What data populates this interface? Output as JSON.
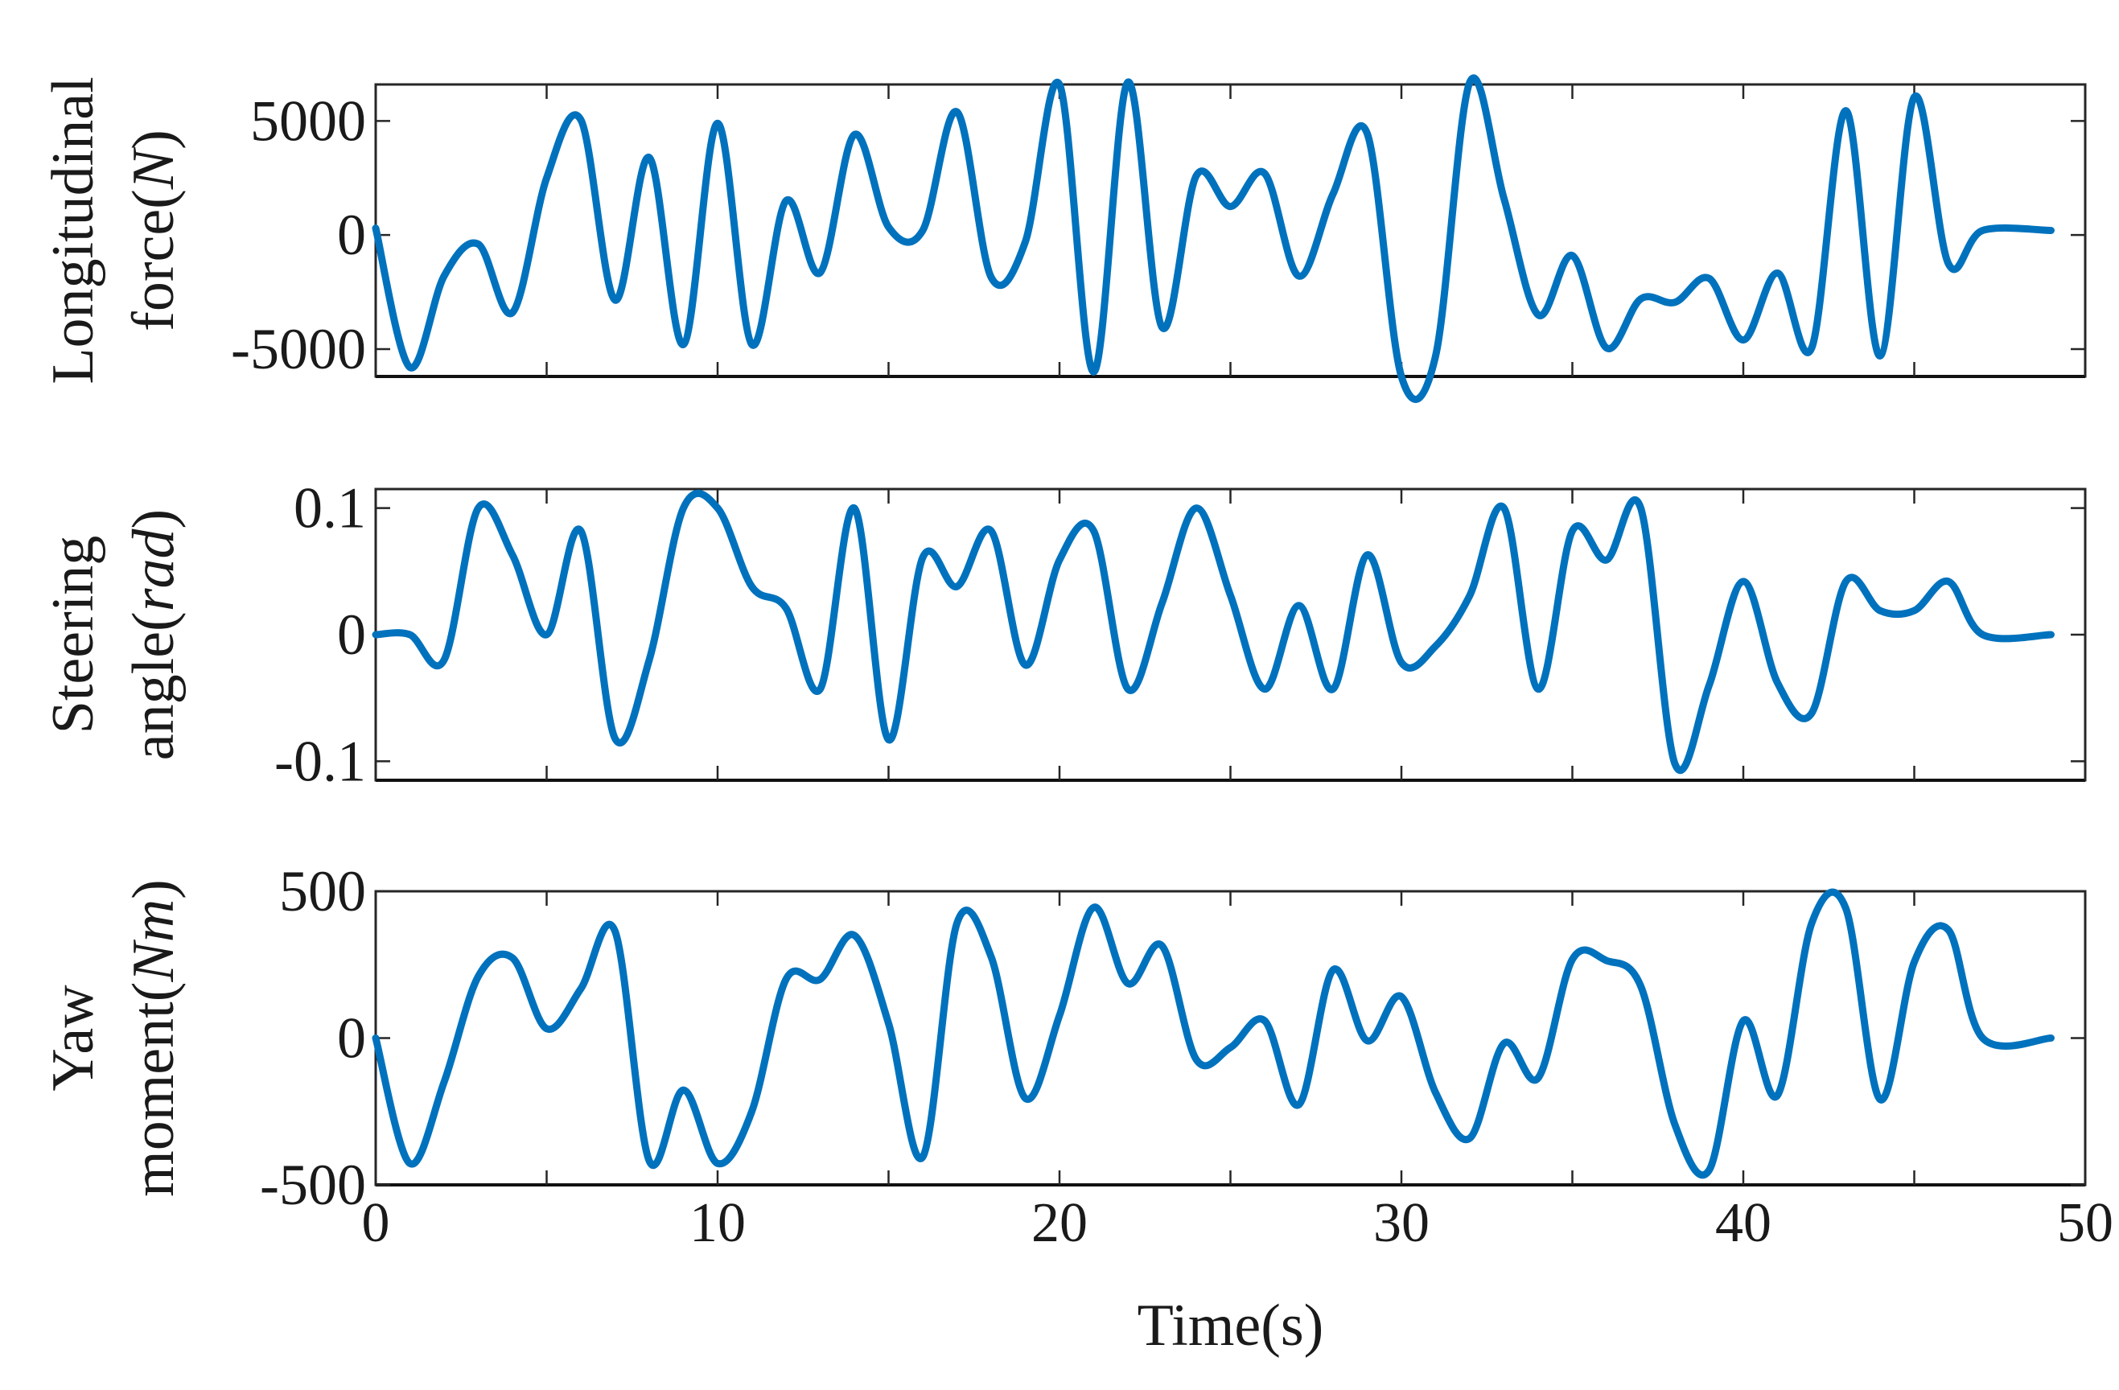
{
  "chart_data": [
    {
      "type": "line",
      "ylabel": "Longitudinal force(N)",
      "xlabel": "",
      "ylim": [
        -6200,
        6600
      ],
      "xlim": [
        0,
        50
      ],
      "yticks": [
        -5000,
        0,
        5000
      ],
      "xticks": [
        0,
        5,
        10,
        15,
        20,
        25,
        30,
        35,
        40,
        45,
        50
      ],
      "show_xtick_labels": false,
      "grid": false,
      "color": "#0072BD",
      "x": [
        0,
        1,
        2,
        3,
        4,
        5,
        6,
        7,
        8,
        9,
        10,
        11,
        12,
        13,
        14,
        15,
        16,
        17,
        18,
        19,
        20,
        21,
        22,
        23,
        24,
        25,
        26,
        27,
        28,
        29,
        30,
        31,
        32,
        33,
        34,
        35,
        36,
        37,
        38,
        39,
        40,
        41,
        42,
        43,
        44,
        45,
        46,
        47,
        49
      ],
      "y": [
        300,
        -5800,
        -1800,
        -400,
        -3400,
        2500,
        5050,
        -2850,
        3400,
        -4800,
        4900,
        -4800,
        1500,
        -1650,
        4400,
        350,
        200,
        5400,
        -1850,
        -300,
        6600,
        -6000,
        6700,
        -4050,
        2600,
        1250,
        2700,
        -1800,
        1800,
        4450,
        -6200,
        -5300,
        6700,
        1600,
        -3500,
        -900,
        -4950,
        -2800,
        -2950,
        -1900,
        -4600,
        -1670,
        -4950,
        5450,
        -5300,
        6050,
        -1260,
        200,
        200
      ]
    },
    {
      "type": "line",
      "ylabel": "Steering angle(rad)",
      "xlabel": "",
      "ylim": [
        -0.115,
        0.115
      ],
      "xlim": [
        0,
        50
      ],
      "yticks": [
        -0.1,
        0,
        0.1
      ],
      "xticks": [
        0,
        5,
        10,
        15,
        20,
        25,
        30,
        35,
        40,
        45,
        50
      ],
      "show_xtick_labels": false,
      "grid": false,
      "color": "#0072BD",
      "x": [
        0,
        1,
        2,
        3,
        4,
        5,
        6,
        7,
        8,
        9,
        10,
        11,
        12,
        13,
        14,
        15,
        16,
        17,
        18,
        19,
        20,
        21,
        22,
        23,
        24,
        25,
        26,
        27,
        28,
        29,
        30,
        31,
        32,
        33,
        34,
        35,
        36,
        37,
        38,
        39,
        40,
        41,
        42,
        43,
        44,
        45,
        46,
        47,
        49
      ],
      "y": [
        0,
        0,
        -0.02,
        0.1,
        0.063,
        0,
        0.082,
        -0.082,
        -0.02,
        0.1,
        0.1,
        0.038,
        0.021,
        -0.043,
        0.1,
        -0.083,
        0.061,
        0.038,
        0.082,
        -0.024,
        0.059,
        0.082,
        -0.043,
        0.025,
        0.1,
        0.031,
        -0.043,
        0.023,
        -0.043,
        0.063,
        -0.022,
        -0.009,
        0.031,
        0.1,
        -0.043,
        0.082,
        0.059,
        0.1,
        -0.102,
        -0.04,
        0.042,
        -0.038,
        -0.062,
        0.042,
        0.019,
        0.019,
        0.042,
        0,
        0
      ]
    },
    {
      "type": "line",
      "ylabel": "Yaw moment(Nm)",
      "xlabel": "Time(s)",
      "ylim": [
        -500,
        500
      ],
      "xlim": [
        0,
        50
      ],
      "yticks": [
        -500,
        0,
        500
      ],
      "xticks": [
        0,
        5,
        10,
        15,
        20,
        25,
        30,
        35,
        40,
        45,
        50
      ],
      "xtick_labels": [
        "0",
        "10",
        "20",
        "30",
        "40",
        "50"
      ],
      "show_xtick_labels": true,
      "grid": false,
      "color": "#0072BD",
      "x": [
        0,
        1,
        2,
        3,
        4,
        5,
        6,
        7,
        8,
        9,
        10,
        11,
        12,
        13,
        14,
        15,
        16,
        17,
        18,
        19,
        20,
        21,
        22,
        23,
        24,
        25,
        26,
        27,
        28,
        29,
        30,
        31,
        32,
        33,
        34,
        35,
        36,
        37,
        38,
        39,
        40,
        41,
        42,
        43,
        44,
        45,
        46,
        47,
        49
      ],
      "y": [
        0,
        -427,
        -150,
        210,
        273,
        32,
        168,
        364,
        -418,
        -177,
        -427,
        -250,
        200,
        200,
        350,
        50,
        -405,
        391,
        277,
        -205,
        77,
        445,
        186,
        314,
        -73,
        -32,
        59,
        -227,
        232,
        -9,
        141,
        -186,
        -341,
        -18,
        -136,
        268,
        264,
        177,
        -295,
        -450,
        59,
        -195,
        391,
        441,
        -209,
        259,
        368,
        0,
        0
      ]
    }
  ]
}
